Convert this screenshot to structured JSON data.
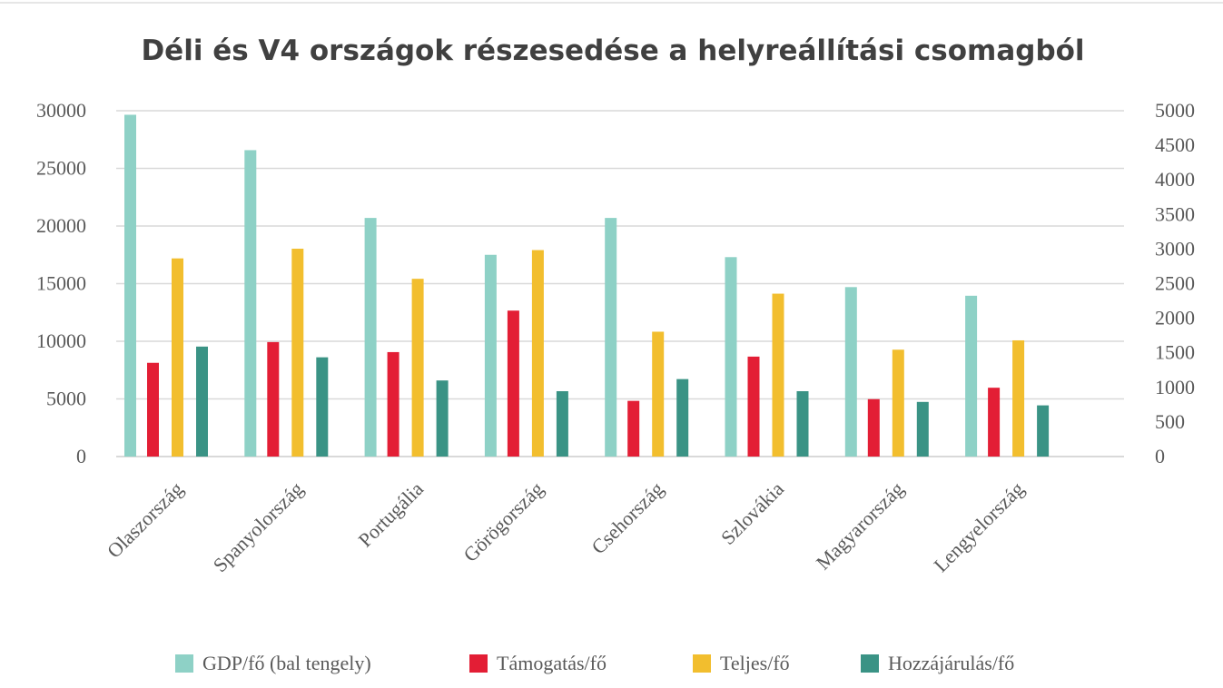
{
  "chart_data": {
    "type": "bar",
    "title": "Déli és V4 országok részesedése a helyreállítási csomagból",
    "categories": [
      "Olaszország",
      "Spanyolország",
      "Portugália",
      "Görögország",
      "Csehország",
      "Szlovákia",
      "Magyarország",
      "Lengyelország"
    ],
    "series": [
      {
        "name": "GDP/fő (bal tengely)",
        "axis": "left",
        "color": "#8ED1C6",
        "values": [
          29650,
          26580,
          20700,
          17500,
          20700,
          17300,
          14700,
          13950
        ]
      },
      {
        "name": "Támogatás/fő",
        "axis": "right",
        "color": "#E31E35",
        "values": [
          1355,
          1655,
          1510,
          2110,
          805,
          1445,
          830,
          995
        ]
      },
      {
        "name": "Teljes/fő",
        "axis": "right",
        "color": "#F2BE2E",
        "values": [
          2865,
          3005,
          2570,
          2985,
          1805,
          2355,
          1545,
          1680
        ]
      },
      {
        "name": "Hozzájárulás/fő",
        "axis": "right",
        "color": "#3A9385",
        "values": [
          1590,
          1435,
          1100,
          945,
          1120,
          945,
          790,
          740
        ]
      }
    ],
    "left_axis": {
      "ylim": [
        0,
        30000
      ],
      "ticks": [
        "0",
        "5000",
        "10000",
        "15000",
        "20000",
        "25000",
        "30000"
      ]
    },
    "right_axis": {
      "ylim": [
        0,
        5000
      ],
      "ticks": [
        "0",
        "500",
        "1000",
        "1500",
        "2000",
        "2500",
        "3000",
        "3500",
        "4000",
        "4500",
        "5000"
      ]
    },
    "grid": true,
    "legend": "bottom"
  }
}
